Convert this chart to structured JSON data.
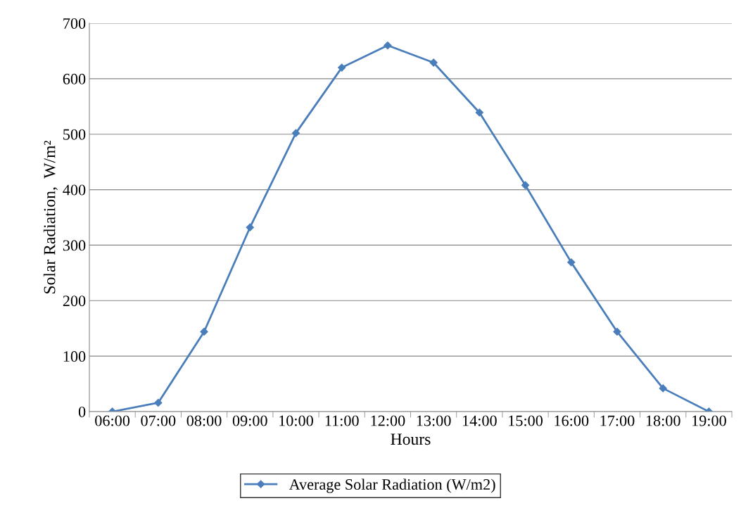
{
  "chart_data": {
    "type": "line",
    "xlabel": "Hours",
    "ylabel": "Solar Radiation,  W/m²",
    "categories": [
      "06:00",
      "07:00",
      "08:00",
      "09:00",
      "10:00",
      "11:00",
      "12:00",
      "13:00",
      "14:00",
      "15:00",
      "16:00",
      "17:00",
      "18:00",
      "19:00"
    ],
    "series": [
      {
        "name": "Average Solar Radiation (W/m2)",
        "color": "#4a7ebb",
        "values": [
          0,
          16,
          144,
          332,
          502,
          620,
          660,
          629,
          539,
          408,
          269,
          144,
          42,
          0
        ]
      }
    ],
    "ylim": [
      0,
      700
    ],
    "yticks": [
      0,
      100,
      200,
      300,
      400,
      500,
      600,
      700
    ],
    "grid": "y",
    "legend": "bottom",
    "marker": "diamond",
    "line_style": "solid"
  }
}
